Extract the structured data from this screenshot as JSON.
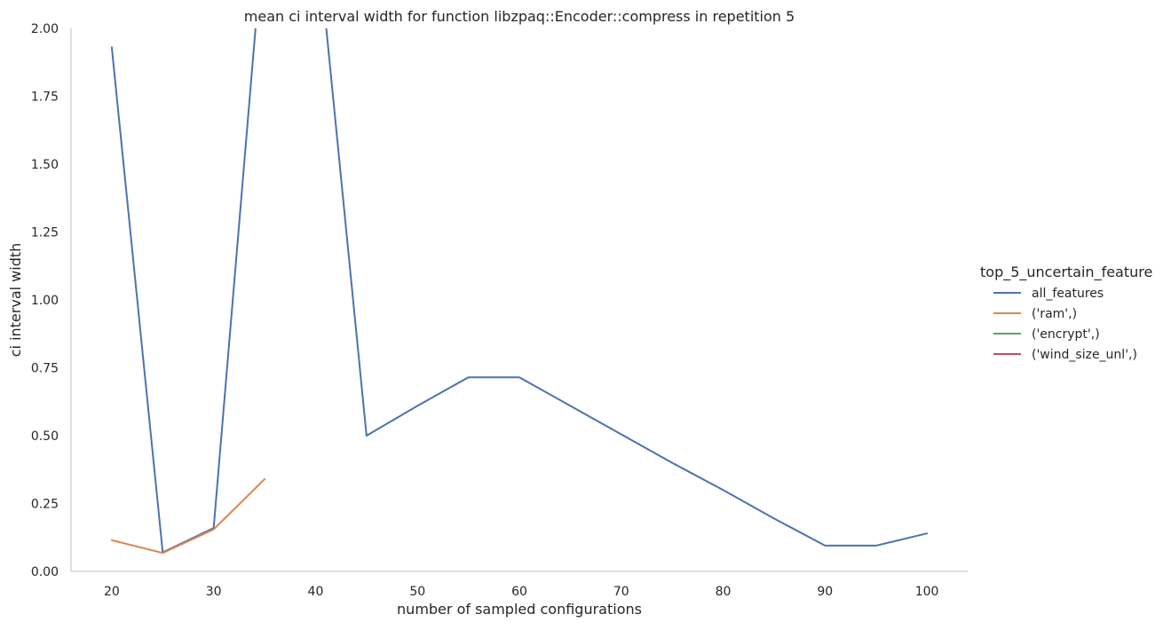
{
  "chart_data": {
    "type": "line",
    "title": "mean ci interval width for function libzpaq::Encoder::compress in repetition 5",
    "xlabel": "number of sampled configurations",
    "ylabel": "ci interval width",
    "xlim": [
      16,
      104
    ],
    "ylim": [
      0,
      2.0
    ],
    "xticks": [
      20,
      30,
      40,
      50,
      60,
      70,
      80,
      90,
      100
    ],
    "yticks": [
      0.0,
      0.25,
      0.5,
      0.75,
      1.0,
      1.25,
      1.5,
      1.75,
      2.0
    ],
    "ytick_labels": [
      "0.00",
      "0.25",
      "0.50",
      "0.75",
      "1.00",
      "1.25",
      "1.50",
      "1.75",
      "2.00"
    ],
    "grid": false,
    "legend": {
      "title": "top_5_uncertain_feature",
      "placement": "right"
    },
    "series": [
      {
        "name": "all_features",
        "color": "#4c72b0",
        "x": [
          20,
          25,
          30,
          35,
          40,
          45,
          50,
          55,
          60,
          65,
          70,
          75,
          80,
          85,
          90,
          95,
          100
        ],
        "y": [
          1.93,
          0.07,
          0.16,
          2.4,
          2.4,
          0.5,
          0.61,
          0.715,
          0.715,
          0.61,
          0.505,
          0.4,
          0.3,
          0.195,
          0.095,
          0.095,
          0.14
        ]
      },
      {
        "name": "('ram',)",
        "color": "#dd8452",
        "x": [
          20,
          25,
          30,
          35
        ],
        "y": [
          0.115,
          0.068,
          0.155,
          0.34
        ]
      },
      {
        "name": "('encrypt',)",
        "color": "#55a868",
        "x": [],
        "y": []
      },
      {
        "name": "('wind_size_unl',)",
        "color": "#c44e52",
        "x": [],
        "y": []
      }
    ]
  }
}
